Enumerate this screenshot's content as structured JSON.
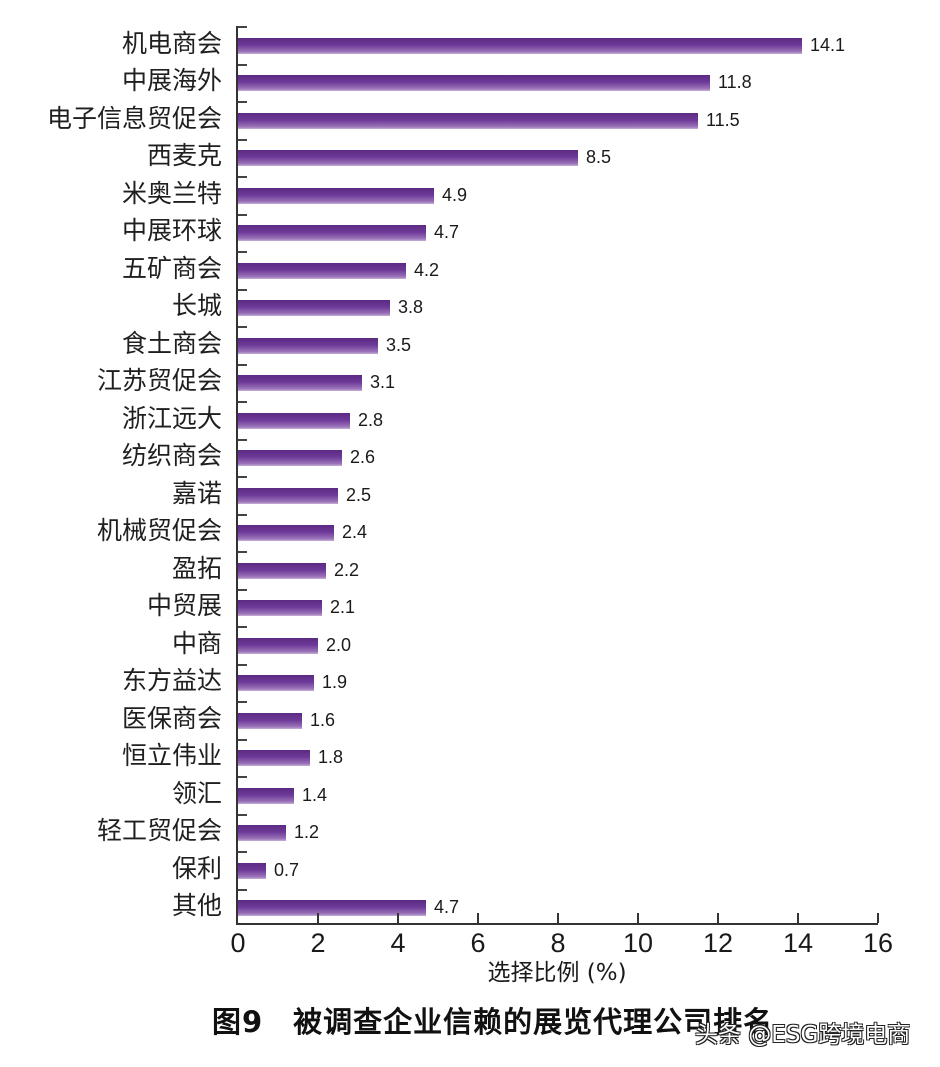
{
  "chart_data": {
    "type": "bar",
    "orientation": "horizontal",
    "title": "图9　被调查企业信赖的展览代理公司排名",
    "xlabel": "选择比例 (%)",
    "ylabel": "",
    "xlim": [
      0,
      16
    ],
    "xticks": [
      0,
      2,
      4,
      6,
      8,
      10,
      12,
      14,
      16
    ],
    "grid": false,
    "legend": null,
    "bar_color": "#6e3a99",
    "categories": [
      "机电商会",
      "中展海外",
      "电子信息贸促会",
      "西麦克",
      "米奥兰特",
      "中展环球",
      "五矿商会",
      "长城",
      "食土商会",
      "江苏贸促会",
      "浙江远大",
      "纺织商会",
      "嘉诺",
      "机械贸促会",
      "盈拓",
      "中贸展",
      "中商",
      "东方益达",
      "医保商会",
      "恒立伟业",
      "领汇",
      "轻工贸促会",
      "保利",
      "其他"
    ],
    "values": [
      14.1,
      11.8,
      11.5,
      8.5,
      4.9,
      4.7,
      4.2,
      3.8,
      3.5,
      3.1,
      2.8,
      2.6,
      2.5,
      2.4,
      2.2,
      2.1,
      2.0,
      1.9,
      1.6,
      1.8,
      1.4,
      1.2,
      0.7,
      4.7
    ],
    "value_labels": [
      "14.1",
      "11.8",
      "11.5",
      "8.5",
      "4.9",
      "4.7",
      "4.2",
      "3.8",
      "3.5",
      "3.1",
      "2.8",
      "2.6",
      "2.5",
      "2.4",
      "2.2",
      "2.1",
      "2.0",
      "1.9",
      "1.6",
      "1.8",
      "1.4",
      "1.2",
      "0.7",
      "4.7"
    ]
  },
  "caption": "图9　被调查企业信赖的展览代理公司排名",
  "watermark": "头条 @ESG跨境电商"
}
